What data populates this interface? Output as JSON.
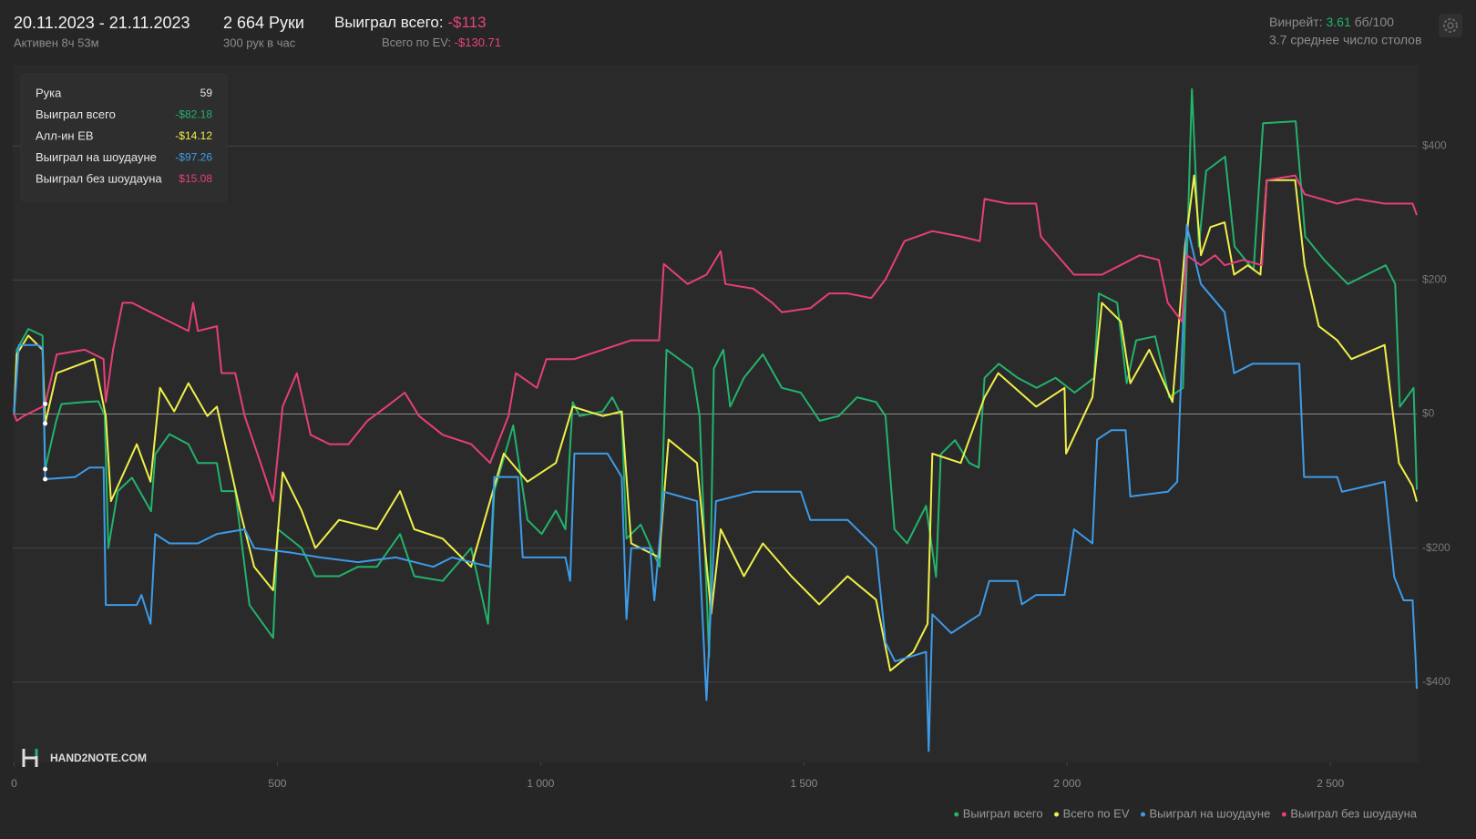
{
  "header": {
    "dates": "20.11.2023 - 21.11.2023",
    "active": "Активен 8ч 53м",
    "hands": "2 664 Руки",
    "rate": "300 рук в час",
    "won_label": "Выиграл всего:",
    "won_value": "-$113",
    "ev_label": "Всего по EV:",
    "ev_value": "-$130.71",
    "winrate_label": "Винрейт:",
    "winrate_value": "3.61",
    "winrate_unit": "бб/100",
    "tables": "3.7 среднее число столов"
  },
  "tooltip": {
    "rows": [
      [
        "Рука",
        "59"
      ],
      [
        "Выиграл всего",
        "-$82.18"
      ],
      [
        "Алл-ин EB",
        "-$14.12"
      ],
      [
        "Выиграл на шоудауне",
        "-$97.26"
      ],
      [
        "Выиграл без шоудауна",
        "$15.08"
      ]
    ]
  },
  "watermark": "HAND2NOTE.COM",
  "chart_data": {
    "type": "line",
    "xlim": [
      0,
      2664
    ],
    "ylim": [
      -520,
      520
    ],
    "xticks": [
      0,
      500,
      {
        "value": 1000,
        "label": "1 000"
      },
      {
        "value": 1500,
        "label": "1 500"
      },
      {
        "value": 2000,
        "label": "2 000"
      },
      {
        "value": 2500,
        "label": "2 500"
      }
    ],
    "yticks": [
      {
        "value": -400,
        "label": "-$400"
      },
      {
        "value": -200,
        "label": "-$200"
      },
      {
        "value": 0,
        "label": "$0"
      },
      {
        "value": 200,
        "label": "$200"
      },
      {
        "value": 400,
        "label": "$400"
      }
    ],
    "grid": true,
    "series": [
      {
        "name": "Выиграл всего",
        "color": "#22b36c",
        "x": [
          0,
          5,
          27,
          54,
          59,
          80,
          90,
          135,
          160,
          172,
          179,
          197,
          224,
          260,
          268,
          295,
          331,
          349,
          385,
          394,
          420,
          447,
          492,
          501,
          546,
          572,
          617,
          653,
          689,
          733,
          760,
          814,
          868,
          900,
          912,
          948,
          975,
          1002,
          1029,
          1047,
          1061,
          1074,
          1118,
          1136,
          1154,
          1163,
          1190,
          1226,
          1239,
          1288,
          1302,
          1320,
          1329,
          1347,
          1360,
          1386,
          1422,
          1458,
          1494,
          1530,
          1566,
          1601,
          1637,
          1655,
          1672,
          1696,
          1732,
          1751,
          1760,
          1787,
          1814,
          1832,
          1843,
          1870,
          1906,
          1942,
          1978,
          2014,
          2051,
          2060,
          2095,
          2113,
          2131,
          2167,
          2194,
          2220,
          2237,
          2250,
          2264,
          2300,
          2318,
          2354,
          2372,
          2434,
          2452,
          2488,
          2533,
          2569,
          2605,
          2623,
          2632,
          2658,
          2664
        ],
        "values": [
          0,
          96,
          127,
          117,
          -82.18,
          -10,
          15,
          18,
          19,
          -2,
          -200,
          -115,
          -95,
          -145,
          -60,
          -30,
          -45,
          -73,
          -73,
          -115,
          -115,
          -285,
          -334,
          -172,
          -200,
          -242,
          -242,
          -228,
          -228,
          -179,
          -242,
          -249,
          -200,
          -313,
          -115,
          -17,
          -158,
          -179,
          -144,
          -172,
          18,
          -3,
          4,
          25,
          -3,
          -186,
          -165,
          -228,
          96,
          68,
          -3,
          -363,
          68,
          96,
          11,
          54,
          89,
          39,
          32,
          -10,
          -3,
          25,
          18,
          -3,
          -172,
          -193,
          -137,
          -243,
          -60,
          -39,
          -73,
          -80,
          54,
          75,
          54,
          39,
          54,
          32,
          54,
          180,
          166,
          46,
          110,
          116,
          25,
          39,
          485,
          250,
          363,
          384,
          250,
          215,
          434,
          437,
          265,
          230,
          194,
          208,
          222,
          194,
          11,
          39,
          -113
        ]
      },
      {
        "name": "Всего по EV",
        "color": "#f0f04a",
        "x": [
          0,
          5,
          27,
          54,
          59,
          81,
          152,
          174,
          184,
          233,
          259,
          277,
          304,
          331,
          367,
          385,
          429,
          456,
          492,
          510,
          546,
          572,
          617,
          689,
          733,
          760,
          814,
          868,
          930,
          975,
          1029,
          1061,
          1118,
          1154,
          1172,
          1225,
          1243,
          1297,
          1324,
          1342,
          1386,
          1422,
          1476,
          1529,
          1583,
          1637,
          1664,
          1708,
          1735,
          1744,
          1798,
          1843,
          1869,
          1941,
          1995,
          1998,
          2048,
          2066,
          2102,
          2120,
          2156,
          2200,
          2224,
          2241,
          2254,
          2272,
          2299,
          2317,
          2343,
          2367,
          2379,
          2433,
          2451,
          2478,
          2513,
          2540,
          2603,
          2630,
          2656,
          2664
        ],
        "values": [
          0,
          89,
          117,
          96,
          -14.12,
          61,
          82,
          -3,
          -130,
          -45,
          -101,
          39,
          4,
          46,
          -3,
          11,
          -144,
          -228,
          -263,
          -87,
          -144,
          -200,
          -158,
          -172,
          -115,
          -172,
          -186,
          -228,
          -59,
          -101,
          -73,
          11,
          -3,
          4,
          -193,
          -214,
          -38,
          -73,
          -298,
          -172,
          -242,
          -193,
          -242,
          -284,
          -242,
          -277,
          -383,
          -355,
          -313,
          -59,
          -73,
          25,
          61,
          11,
          39,
          -59,
          25,
          166,
          138,
          46,
          96,
          18,
          251,
          356,
          237,
          279,
          286,
          208,
          222,
          208,
          349,
          349,
          222,
          131,
          110,
          82,
          103,
          -73,
          -108,
          -130.71
        ]
      },
      {
        "name": "Выиграл на шоудауне",
        "color": "#3d9be9",
        "x": [
          0,
          9,
          45,
          54,
          59,
          116,
          143,
          170,
          174,
          233,
          242,
          259,
          268,
          295,
          349,
          385,
          438,
          456,
          528,
          581,
          653,
          725,
          796,
          832,
          904,
          912,
          957,
          966,
          1047,
          1056,
          1064,
          1127,
          1154,
          1163,
          1172,
          1208,
          1216,
          1234,
          1297,
          1315,
          1333,
          1404,
          1494,
          1512,
          1583,
          1637,
          1655,
          1673,
          1732,
          1737,
          1744,
          1762,
          1780,
          1834,
          1852,
          1905,
          1914,
          1941,
          1995,
          2013,
          2048,
          2057,
          2084,
          2111,
          2120,
          2191,
          2209,
          2227,
          2254,
          2299,
          2317,
          2352,
          2441,
          2450,
          2513,
          2522,
          2567,
          2603,
          2621,
          2639,
          2656,
          2662,
          2664
        ],
        "values": [
          0,
          103,
          103,
          99,
          -97.26,
          -94,
          -80,
          -80,
          -285,
          -285,
          -270,
          -313,
          -179,
          -193,
          -193,
          -179,
          -172,
          -200,
          -207,
          -214,
          -221,
          -214,
          -228,
          -214,
          -228,
          -94,
          -94,
          -214,
          -214,
          -249,
          -59,
          -59,
          -94,
          -306,
          -200,
          -200,
          -278,
          -116,
          -130,
          -427,
          -130,
          -116,
          -116,
          -158,
          -158,
          -200,
          -341,
          -369,
          -355,
          -503,
          -299,
          -313,
          -327,
          -299,
          -249,
          -249,
          -284,
          -270,
          -270,
          -172,
          -193,
          -38,
          -24,
          -24,
          -123,
          -116,
          -101,
          282,
          194,
          152,
          61,
          75,
          75,
          -94,
          -94,
          -116,
          -108,
          -101,
          -243,
          -278,
          -278,
          -369,
          -410
        ]
      },
      {
        "name": "Выиграл без шоудауна",
        "color": "#e63f78",
        "x": [
          0,
          5,
          18,
          54,
          59,
          81,
          134,
          170,
          174,
          188,
          206,
          224,
          259,
          295,
          331,
          340,
          349,
          385,
          394,
          420,
          438,
          474,
          492,
          510,
          537,
          563,
          599,
          635,
          671,
          707,
          742,
          769,
          814,
          868,
          904,
          939,
          953,
          993,
          1011,
          1064,
          1118,
          1172,
          1225,
          1234,
          1279,
          1315,
          1342,
          1351,
          1404,
          1440,
          1458,
          1512,
          1548,
          1583,
          1628,
          1655,
          1691,
          1744,
          1798,
          1834,
          1843,
          1887,
          1941,
          1950,
          2013,
          2066,
          2138,
          2174,
          2191,
          2218,
          2227,
          2254,
          2281,
          2299,
          2334,
          2370,
          2379,
          2433,
          2451,
          2513,
          2549,
          2603,
          2656,
          2664
        ],
        "values": [
          0,
          -10,
          -3,
          11,
          15.08,
          89,
          96,
          82,
          18,
          96,
          166,
          166,
          152,
          138,
          124,
          166,
          124,
          131,
          61,
          61,
          -3,
          -87,
          -130,
          11,
          61,
          -31,
          -45,
          -45,
          -10,
          11,
          32,
          -3,
          -31,
          -45,
          -73,
          -3,
          61,
          39,
          82,
          82,
          96,
          110,
          110,
          224,
          194,
          208,
          243,
          194,
          187,
          166,
          152,
          158,
          180,
          180,
          173,
          201,
          258,
          273,
          265,
          258,
          321,
          314,
          314,
          265,
          208,
          208,
          237,
          230,
          166,
          138,
          237,
          222,
          237,
          222,
          230,
          222,
          349,
          356,
          328,
          314,
          321,
          314,
          314,
          297
        ]
      }
    ]
  }
}
